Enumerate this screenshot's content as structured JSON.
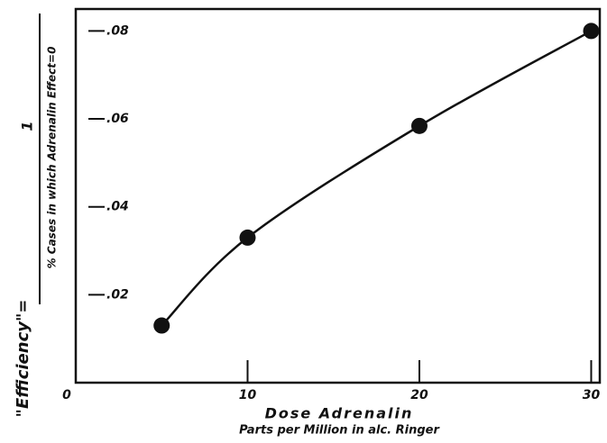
{
  "chart_data": {
    "type": "line",
    "ylabel_prefix": "\"Efficiency\"=",
    "ylabel_numerator": "1",
    "ylabel_denominator": "% Cases in which Adrenalin Effect=0",
    "xlabel": "Dose Adrenalin",
    "xlabel_sub": "Parts per Million in alc. Ringer",
    "x": [
      5,
      10,
      20,
      30
    ],
    "series": [
      {
        "color": "#111111",
        "values": [
          0.013,
          0.033,
          0.0584,
          0.08
        ]
      }
    ],
    "xlim": [
      0,
      30.5
    ],
    "xticks": [
      0,
      10,
      20,
      30
    ],
    "ylim": [
      0,
      0.085
    ],
    "yticks": [
      {
        "value": 0.02,
        "label": ".02"
      },
      {
        "value": 0.04,
        "label": ".04"
      },
      {
        "value": 0.06,
        "label": ".06"
      },
      {
        "value": 0.08,
        "label": ".08"
      }
    ]
  }
}
